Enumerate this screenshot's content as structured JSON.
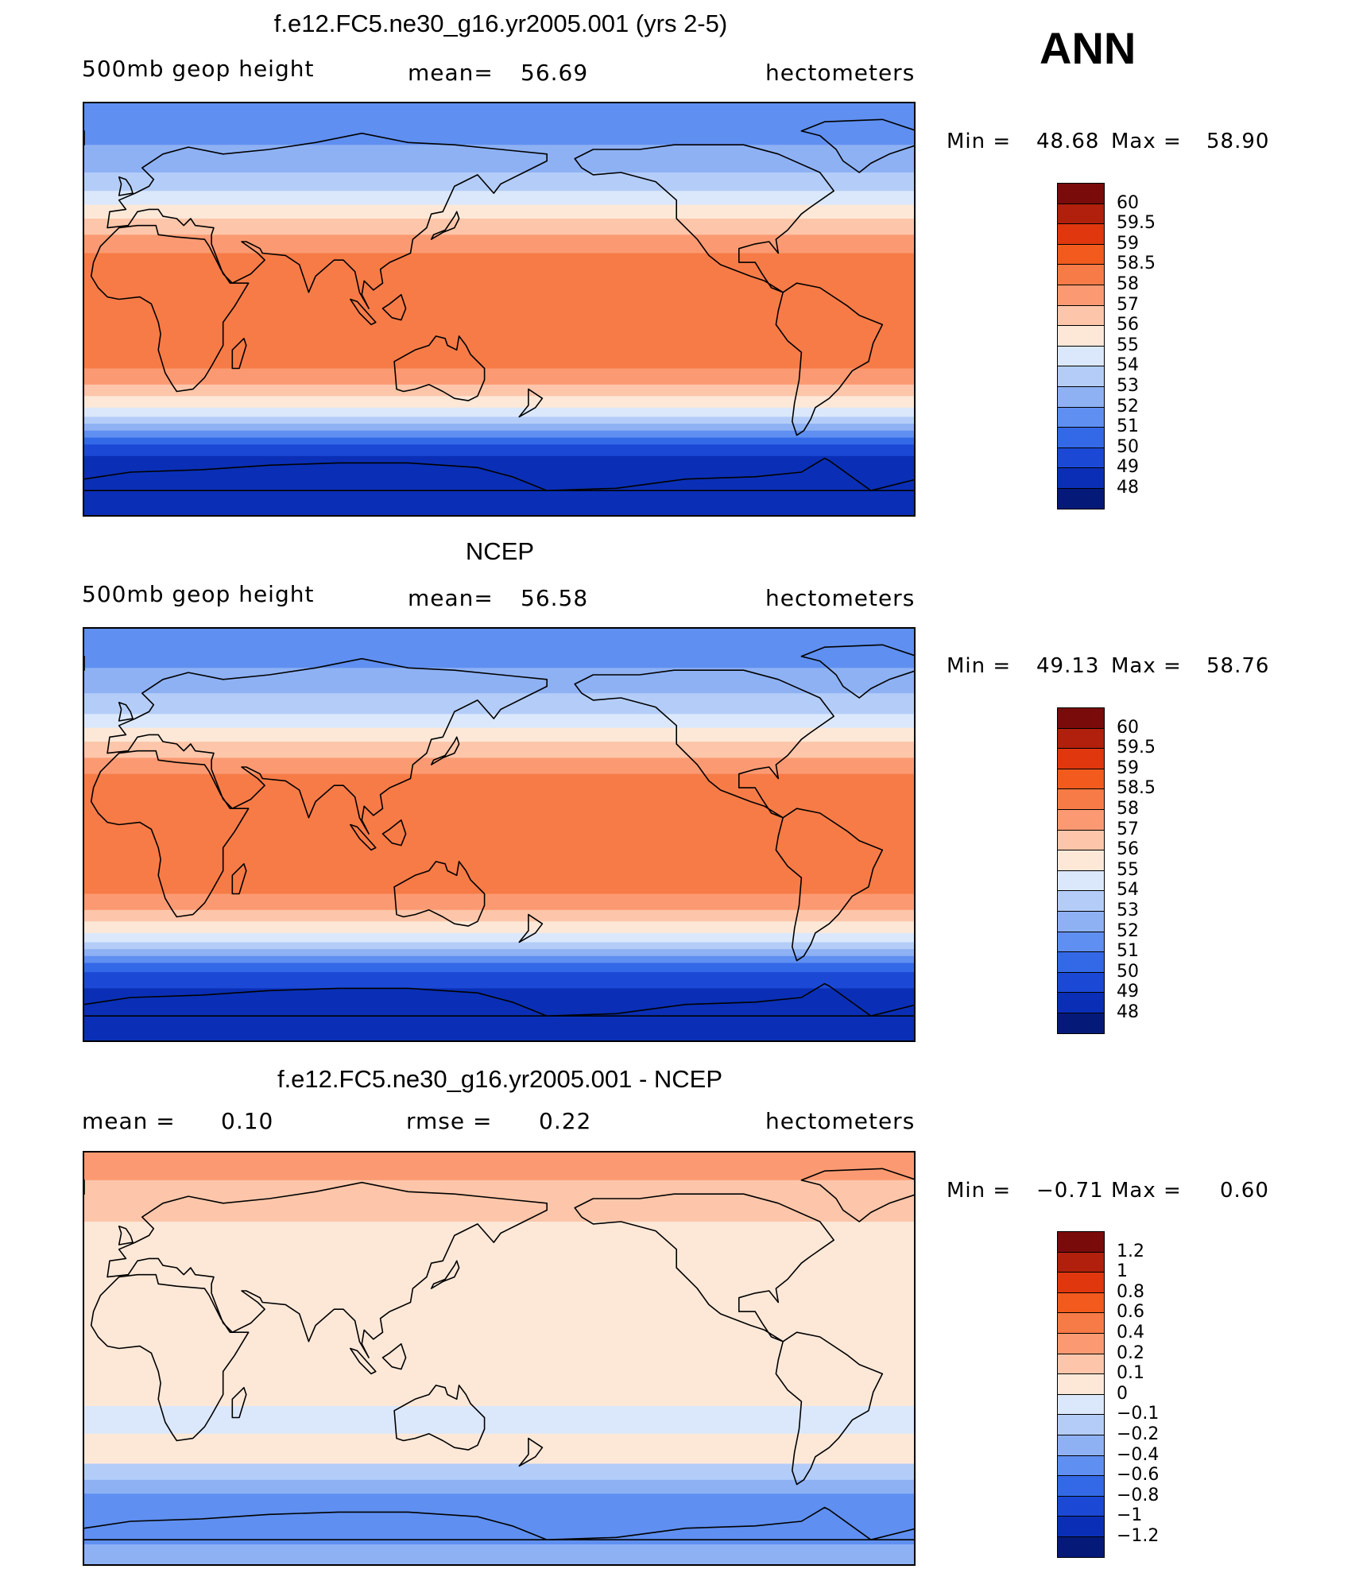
{
  "season": "ANN",
  "chart_data": [
    {
      "type": "heatmap",
      "title": "f.e12.FC5.ne30_g16.yr2005.001 (yrs 2-5)",
      "variable": "500mb geop height",
      "stat1_label": "mean=",
      "stat1_value": "56.69",
      "units": "hectometers",
      "min_label": "Min =",
      "min_value": "48.68",
      "max_label": "Max =",
      "max_value": "58.90",
      "colorbar_levels": [
        "60",
        "59.5",
        "59",
        "58.5",
        "58",
        "57",
        "56",
        "55",
        "54",
        "53",
        "52",
        "51",
        "50",
        "49",
        "48"
      ],
      "colorbar_colors": [
        "#7a0b0b",
        "#b0200c",
        "#e0370f",
        "#f25a1e",
        "#f77b47",
        "#fb9a72",
        "#fdc6aa",
        "#fde8d8",
        "#dbe8fb",
        "#b4cdf8",
        "#8eb1f4",
        "#5f8ff0",
        "#3369e7",
        "#1b49d6",
        "#0a2fb6",
        "#051a78"
      ],
      "zonal_bands": [
        {
          "lat_top": 90,
          "lat_bottom": 72,
          "level": "52"
        },
        {
          "lat_top": 72,
          "lat_bottom": 60,
          "level": "53"
        },
        {
          "lat_top": 60,
          "lat_bottom": 52,
          "level": "54"
        },
        {
          "lat_top": 52,
          "lat_bottom": 46,
          "level": "55"
        },
        {
          "lat_top": 46,
          "lat_bottom": 40,
          "level": "56"
        },
        {
          "lat_top": 40,
          "lat_bottom": 33,
          "level": "57"
        },
        {
          "lat_top": 33,
          "lat_bottom": 25,
          "level": "58"
        },
        {
          "lat_top": 25,
          "lat_bottom": -25,
          "level": "58.5"
        },
        {
          "lat_top": -25,
          "lat_bottom": -32,
          "level": "58"
        },
        {
          "lat_top": -32,
          "lat_bottom": -37,
          "level": "57"
        },
        {
          "lat_top": -37,
          "lat_bottom": -42,
          "level": "56"
        },
        {
          "lat_top": -42,
          "lat_bottom": -46,
          "level": "55"
        },
        {
          "lat_top": -46,
          "lat_bottom": -49,
          "level": "54"
        },
        {
          "lat_top": -49,
          "lat_bottom": -52,
          "level": "53"
        },
        {
          "lat_top": -52,
          "lat_bottom": -55,
          "level": "52"
        },
        {
          "lat_top": -55,
          "lat_bottom": -58,
          "level": "51"
        },
        {
          "lat_top": -58,
          "lat_bottom": -63,
          "level": "50"
        },
        {
          "lat_top": -63,
          "lat_bottom": -90,
          "level": "49"
        }
      ]
    },
    {
      "type": "heatmap",
      "title": "NCEP",
      "variable": "500mb geop height",
      "stat1_label": "mean=",
      "stat1_value": "56.58",
      "units": "hectometers",
      "min_label": "Min =",
      "min_value": "49.13",
      "max_label": "Max =",
      "max_value": "58.76",
      "colorbar_levels": [
        "60",
        "59.5",
        "59",
        "58.5",
        "58",
        "57",
        "56",
        "55",
        "54",
        "53",
        "52",
        "51",
        "50",
        "49",
        "48"
      ],
      "colorbar_colors": [
        "#7a0b0b",
        "#b0200c",
        "#e0370f",
        "#f25a1e",
        "#f77b47",
        "#fb9a72",
        "#fdc6aa",
        "#fde8d8",
        "#dbe8fb",
        "#b4cdf8",
        "#8eb1f4",
        "#5f8ff0",
        "#3369e7",
        "#1b49d6",
        "#0a2fb6",
        "#051a78"
      ],
      "zonal_bands": [
        {
          "lat_top": 90,
          "lat_bottom": 73,
          "level": "52"
        },
        {
          "lat_top": 73,
          "lat_bottom": 62,
          "level": "53"
        },
        {
          "lat_top": 62,
          "lat_bottom": 53,
          "level": "54"
        },
        {
          "lat_top": 53,
          "lat_bottom": 47,
          "level": "55"
        },
        {
          "lat_top": 47,
          "lat_bottom": 41,
          "level": "56"
        },
        {
          "lat_top": 41,
          "lat_bottom": 34,
          "level": "57"
        },
        {
          "lat_top": 34,
          "lat_bottom": 27,
          "level": "58"
        },
        {
          "lat_top": 27,
          "lat_bottom": -25,
          "level": "58.5"
        },
        {
          "lat_top": -25,
          "lat_bottom": -32,
          "level": "58"
        },
        {
          "lat_top": -32,
          "lat_bottom": -37,
          "level": "57"
        },
        {
          "lat_top": -37,
          "lat_bottom": -42,
          "level": "56"
        },
        {
          "lat_top": -42,
          "lat_bottom": -46,
          "level": "55"
        },
        {
          "lat_top": -46,
          "lat_bottom": -49,
          "level": "54"
        },
        {
          "lat_top": -49,
          "lat_bottom": -52,
          "level": "53"
        },
        {
          "lat_top": -52,
          "lat_bottom": -55,
          "level": "52"
        },
        {
          "lat_top": -55,
          "lat_bottom": -59,
          "level": "51"
        },
        {
          "lat_top": -59,
          "lat_bottom": -66,
          "level": "50"
        },
        {
          "lat_top": -66,
          "lat_bottom": -90,
          "level": "49"
        }
      ]
    },
    {
      "type": "heatmap",
      "title": "f.e12.FC5.ne30_g16.yr2005.001 - NCEP",
      "stat1_label": "mean =",
      "stat1_value": "0.10",
      "stat2_label": "rmse =",
      "stat2_value": "0.22",
      "units": "hectometers",
      "min_label": "Min =",
      "min_value": "−0.71",
      "max_label": "Max =",
      "max_value": "0.60",
      "colorbar_levels": [
        "1.2",
        "1",
        "0.8",
        "0.6",
        "0.4",
        "0.2",
        "0.1",
        "0",
        "−0.1",
        "−0.2",
        "−0.4",
        "−0.6",
        "−0.8",
        "−1",
        "−1.2"
      ],
      "colorbar_colors": [
        "#7a0b0b",
        "#b0200c",
        "#e0370f",
        "#f25a1e",
        "#f77b47",
        "#fb9a72",
        "#fdc6aa",
        "#fde8d8",
        "#dbe8fb",
        "#b4cdf8",
        "#8eb1f4",
        "#5f8ff0",
        "#3369e7",
        "#1b49d6",
        "#0a2fb6",
        "#051a78"
      ],
      "zonal_bands": [
        {
          "lat_top": 90,
          "lat_bottom": 78,
          "level": "0.4"
        },
        {
          "lat_top": 78,
          "lat_bottom": 60,
          "level": "0.2"
        },
        {
          "lat_top": 60,
          "lat_bottom": 35,
          "level": "0.1"
        },
        {
          "lat_top": 35,
          "lat_bottom": -20,
          "level": "0.1"
        },
        {
          "lat_top": -20,
          "lat_bottom": -32,
          "level": "0"
        },
        {
          "lat_top": -32,
          "lat_bottom": -45,
          "level": "0.1"
        },
        {
          "lat_top": -45,
          "lat_bottom": -52,
          "level": "−0.1"
        },
        {
          "lat_top": -52,
          "lat_bottom": -58,
          "level": "−0.2"
        },
        {
          "lat_top": -58,
          "lat_bottom": -66,
          "level": "−0.4"
        },
        {
          "lat_top": -66,
          "lat_bottom": -80,
          "level": "−0.4"
        },
        {
          "lat_top": -80,
          "lat_bottom": -90,
          "level": "−0.2"
        }
      ]
    }
  ]
}
